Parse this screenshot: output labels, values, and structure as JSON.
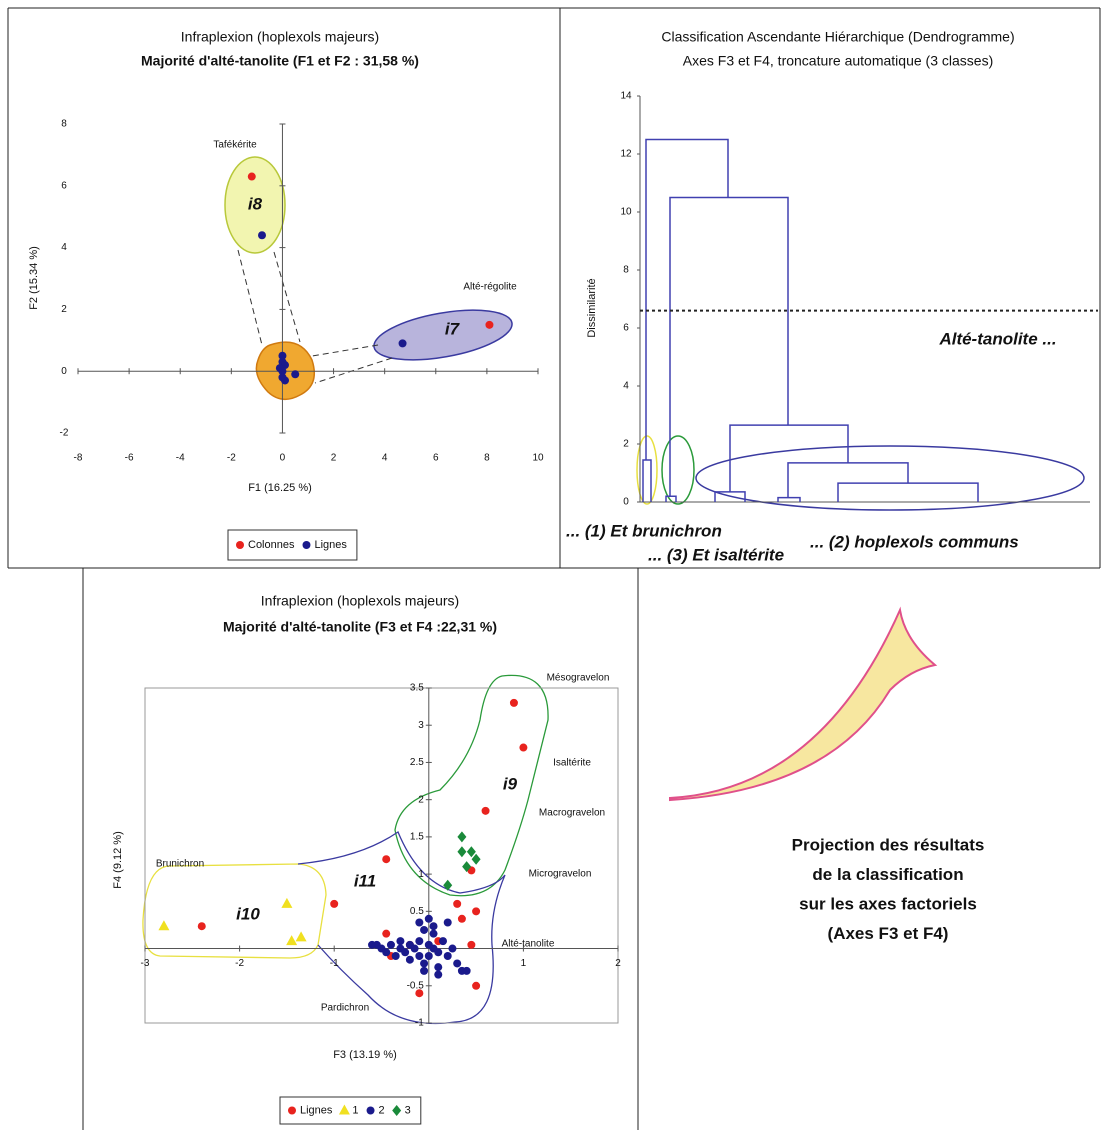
{
  "chart_data": [
    {
      "type": "scatter",
      "title": "Infraplexion (hoplexols majeurs)",
      "subtitle": "Majorité d'alté-tanolite (F1 et F2 : 31,58 %)",
      "xlabel": "F1 (16.25 %)",
      "ylabel": "F2 (15.34 %)",
      "xlim": [
        -8,
        10
      ],
      "ylim": [
        -2,
        8
      ],
      "xticks": [
        -8,
        -6,
        -4,
        -2,
        0,
        2,
        4,
        6,
        8,
        10
      ],
      "yticks": [
        -2,
        0,
        2,
        4,
        6,
        8
      ],
      "series": [
        {
          "name": "Colonnes",
          "color": "#e8231e",
          "marker": "circle",
          "x": [
            -1.2,
            8.1
          ],
          "y": [
            6.3,
            1.5
          ]
        },
        {
          "name": "Lignes",
          "color": "#1a1a8c",
          "marker": "circle",
          "x": [
            -0.8,
            4.7,
            0,
            0,
            0.1,
            0,
            0,
            0.5,
            0.1,
            -0.1
          ],
          "y": [
            4.4,
            0.9,
            0.5,
            0.3,
            0.2,
            0,
            -0.2,
            -0.1,
            -0.3,
            0.1
          ]
        }
      ],
      "annotations": [
        "Tafékérite",
        "Alté-régolite"
      ],
      "cluster_labels": [
        "i8",
        "i7"
      ],
      "legend": "bottom"
    },
    {
      "type": "dendrogram",
      "title": "Classification Ascendante Hiérarchique (Dendrogramme)",
      "subtitle": "Axes F3 et F4, troncature automatique (3 classes)",
      "ylabel": "Dissimilarité",
      "ylim": [
        0,
        14
      ],
      "yticks": [
        0,
        2,
        4,
        6,
        8,
        10,
        12,
        14
      ],
      "merge_heights": [
        12.5,
        10.5,
        2.65,
        1.35,
        0.65,
        1.45,
        0.35,
        0.2,
        0.15
      ],
      "truncation": 6.6,
      "truncation_label": "Alté-tanolite ...",
      "color": "#4040b0",
      "class_labels": [
        "... (1) Et brunichron",
        "... (3) Et isaltérite",
        "... (2) hoplexols communs"
      ]
    },
    {
      "type": "scatter",
      "title": "Infraplexion (hoplexols majeurs)",
      "subtitle": "Majorité d'alté-tanolite (F3 et F4 :22,31 %)",
      "xlabel": "F3 (13.19 %)",
      "ylabel": "F4 (9.12 %)",
      "xlim": [
        -3,
        2
      ],
      "ylim": [
        -1,
        3.5
      ],
      "xticks": [
        -3,
        -2,
        -1,
        1,
        2
      ],
      "yticks": [
        -1,
        -0.5,
        0.5,
        1,
        1.5,
        2,
        2.5,
        3,
        3.5
      ],
      "series": [
        {
          "name": "Lignes",
          "color": "#e8231e",
          "marker": "circle",
          "x": [
            -2.4,
            -1,
            -0.45,
            -0.45,
            -0.2,
            -0.4,
            0.1,
            -0.1,
            0.3,
            0.35,
            0.5,
            0.6,
            0.9,
            1,
            0.45,
            0.45,
            0.5
          ],
          "y": [
            0.3,
            0.6,
            1.2,
            0.2,
            0.05,
            -0.1,
            0.1,
            -0.6,
            0.6,
            0.4,
            0.5,
            1.85,
            3.3,
            2.7,
            1.05,
            0.05,
            -0.5
          ]
        },
        {
          "name": "1",
          "color": "#f0e020",
          "marker": "triangle",
          "x": [
            -2.8,
            -1.5,
            -1.45,
            -1.35
          ],
          "y": [
            0.3,
            0.6,
            0.1,
            0.15
          ]
        },
        {
          "name": "2",
          "color": "#1a1a8c",
          "marker": "circle",
          "x": [
            -0.55,
            -0.5,
            -0.45,
            -0.4,
            -0.35,
            -0.3,
            -0.3,
            -0.25,
            -0.2,
            -0.2,
            -0.15,
            -0.1,
            -0.1,
            -0.05,
            -0.05,
            0,
            0,
            0.05,
            0.05,
            0.1,
            0.1,
            0.15,
            0.2,
            0.2,
            0.25,
            0.3,
            0.35,
            0.4,
            -0.1,
            0,
            0.1,
            -0.6,
            -0.05,
            0.05
          ],
          "y": [
            0.05,
            0,
            -0.05,
            0.05,
            -0.1,
            0,
            0.1,
            -0.05,
            0.05,
            -0.15,
            0,
            0.1,
            -0.1,
            0.25,
            -0.2,
            0.05,
            -0.1,
            0,
            0.2,
            -0.05,
            -0.25,
            0.1,
            -0.1,
            0.35,
            0,
            -0.2,
            -0.3,
            -0.3,
            0.35,
            0.4,
            -0.35,
            0.05,
            -0.3,
            0.3
          ]
        },
        {
          "name": "3",
          "color": "#1a8a3a",
          "marker": "diamond",
          "x": [
            0.35,
            0.45,
            0.5,
            0.4,
            0.35,
            0.2
          ],
          "y": [
            1.5,
            1.3,
            1.2,
            1.1,
            1.3,
            0.85
          ]
        }
      ],
      "annotations": [
        "Mésogravelon",
        "Isaltérite",
        "Macrogravelon",
        "Microgravelon",
        "Alté-tanolite",
        "Brunichron",
        "Pardichron"
      ],
      "cluster_labels": [
        "i9",
        "i10",
        "i11"
      ],
      "legend": "bottom"
    }
  ],
  "caption": [
    "Projection des résultats",
    "de la classification",
    "sur les axes factoriels",
    "(Axes F3 et F4)"
  ]
}
